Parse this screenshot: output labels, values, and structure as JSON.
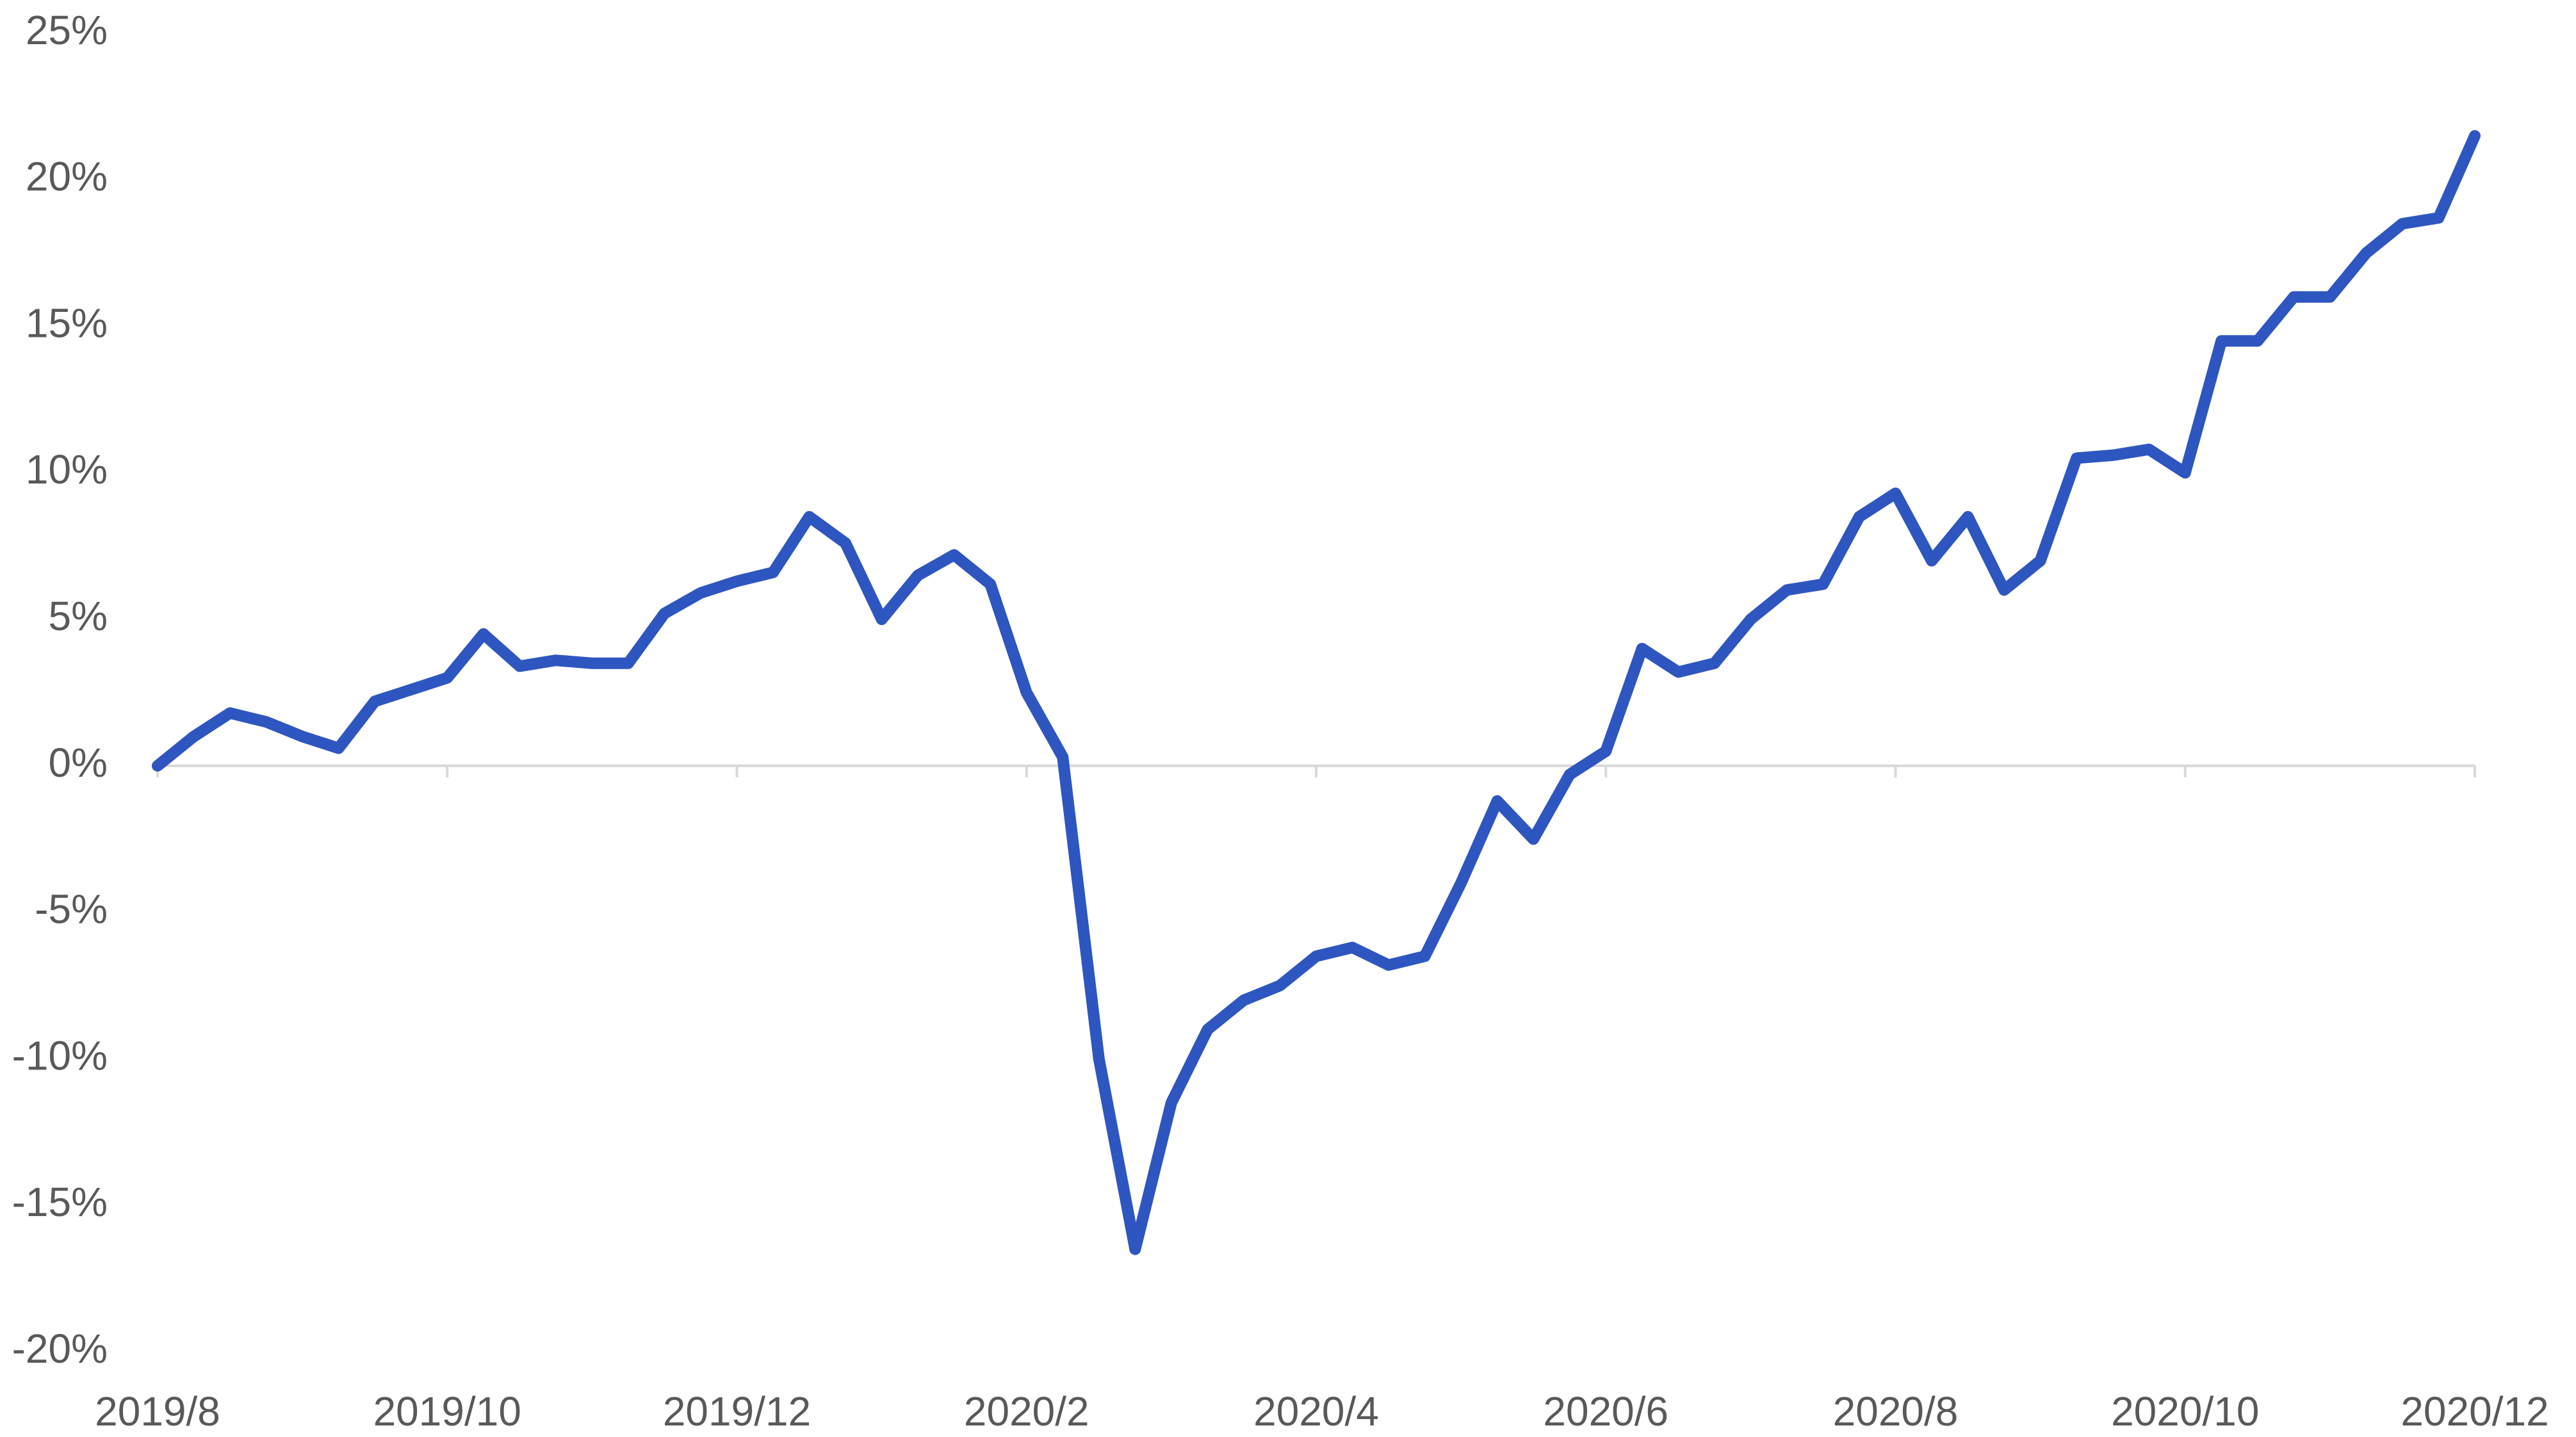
{
  "chart_data": {
    "type": "line",
    "x": [
      0,
      0.25,
      0.5,
      0.75,
      1,
      1.25,
      1.5,
      1.75,
      2,
      2.25,
      2.5,
      2.75,
      3,
      3.25,
      3.5,
      3.75,
      4,
      4.25,
      4.5,
      4.75,
      5,
      5.25,
      5.5,
      5.75,
      6,
      6.25,
      6.5,
      6.75,
      7,
      7.25,
      7.5,
      7.75,
      8,
      8.25,
      8.5,
      8.75,
      9,
      9.25,
      9.5,
      9.75,
      10,
      10.25,
      10.5,
      10.75,
      11,
      11.25,
      11.5,
      11.75,
      12,
      12.25,
      12.5,
      12.75,
      13,
      13.25,
      13.5,
      13.75,
      14,
      14.25,
      14.5,
      14.75,
      15,
      15.25,
      15.5,
      15.75,
      16
    ],
    "series": [
      {
        "color": "#2e56c0",
        "values": [
          0,
          1,
          1.8,
          1.5,
          1.0,
          0.6,
          2.2,
          2.6,
          3.0,
          4.5,
          3.4,
          3.6,
          3.5,
          3.5,
          5.2,
          5.9,
          6.3,
          6.6,
          8.5,
          7.6,
          5.0,
          6.5,
          7.2,
          6.2,
          2.5,
          0.3,
          -10,
          -16.5,
          -11.5,
          -9,
          -8,
          -7.5,
          -6.5,
          -6.2,
          -6.8,
          -6.5,
          -4,
          -1.2,
          -2.5,
          -0.3,
          0.5,
          4,
          3.2,
          3.5,
          5.0,
          6.0,
          6.2,
          8.5,
          9.3,
          7.0,
          8.5,
          6.0,
          7.0,
          10.5,
          10.6,
          10.8,
          10,
          14.5,
          14.5,
          16,
          16,
          17.5,
          18.5,
          18.7,
          21.5
        ]
      }
    ],
    "xlim": [
      0,
      16
    ],
    "xticks": [
      {
        "value": 0,
        "label": "2019/8"
      },
      {
        "value": 2,
        "label": "2019/10"
      },
      {
        "value": 4,
        "label": "2019/12"
      },
      {
        "value": 6,
        "label": "2020/2"
      },
      {
        "value": 8,
        "label": "2020/4"
      },
      {
        "value": 10,
        "label": "2020/6"
      },
      {
        "value": 12,
        "label": "2020/8"
      },
      {
        "value": 14,
        "label": "2020/10"
      },
      {
        "value": 16,
        "label": "2020/12"
      }
    ],
    "ylim": [
      -20,
      25
    ],
    "yticks": [
      {
        "value": -20,
        "label": "-20%"
      },
      {
        "value": -15,
        "label": "-15%"
      },
      {
        "value": -10,
        "label": "-10%"
      },
      {
        "value": -5,
        "label": "-5%"
      },
      {
        "value": 0,
        "label": "0%"
      },
      {
        "value": 5,
        "label": "5%"
      },
      {
        "value": 10,
        "label": "10%"
      },
      {
        "value": 15,
        "label": "15%"
      },
      {
        "value": 20,
        "label": "20%"
      },
      {
        "value": 25,
        "label": "25%"
      }
    ],
    "grid": false
  }
}
